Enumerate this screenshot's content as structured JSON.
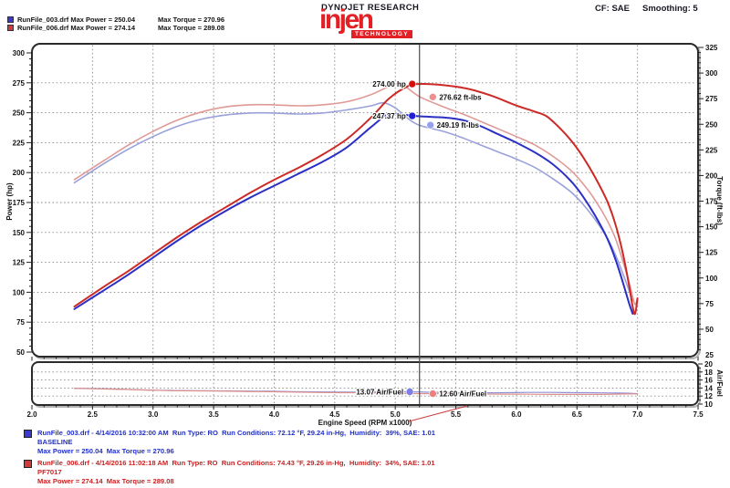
{
  "header": {
    "runs_summary": [
      {
        "file_power": "RunFile_003.drf Max Power = 250.04",
        "torque": "Max Torque = 270.96",
        "swatch_color": "#3a3ad0"
      },
      {
        "file_power": "RunFile_006.drf Max Power = 274.14",
        "torque": "Max Torque = 289.08",
        "swatch_color": "#d03a3a"
      }
    ],
    "brand": "DYNOJET RESEARCH",
    "logo_word": "injen",
    "logo_sub": "TECHNOLOGY",
    "correction": "CF: SAE",
    "smoothing": "Smoothing: 5"
  },
  "chart_data": {
    "type": "line",
    "grid": "dotted",
    "x_axis": {
      "title": "Engine Speed (RPM x1000)",
      "min": 2.0,
      "max": 7.5,
      "major_tick": 0.5,
      "minor_tick": 0.1,
      "tick_labels": [
        "2.0",
        "2.5",
        "3.0",
        "3.5",
        "4.0",
        "4.5",
        "5.0",
        "5.5",
        "6.0",
        "6.5",
        "7.0",
        "7.5"
      ]
    },
    "power_axis": {
      "title": "Power (hp)",
      "min": 50,
      "max": 300,
      "ticks": [
        300,
        275,
        250,
        225,
        200,
        175,
        150,
        125,
        100,
        75,
        50
      ]
    },
    "torque_axis": {
      "title": "Torque (ft-lbs)",
      "min": 25,
      "max": 325,
      "ticks": [
        325,
        300,
        275,
        250,
        225,
        200,
        175,
        150,
        125,
        100,
        75,
        50,
        25
      ]
    },
    "af_axis": {
      "title": "Air/Fuel",
      "min": 10,
      "max": 20,
      "ticks": [
        20,
        18,
        16,
        14,
        12,
        10
      ]
    },
    "cursor_rpm": 5.2,
    "series": [
      {
        "name": "RunFile_006 Torque",
        "axis": "torque",
        "color": "#e09a96",
        "width": 1.6,
        "points": [
          [
            2.35,
            196
          ],
          [
            2.6,
            215
          ],
          [
            2.8,
            230
          ],
          [
            3.0,
            243
          ],
          [
            3.2,
            254
          ],
          [
            3.4,
            262
          ],
          [
            3.6,
            267
          ],
          [
            3.8,
            269
          ],
          [
            4.0,
            269
          ],
          [
            4.2,
            268
          ],
          [
            4.4,
            269
          ],
          [
            4.6,
            272
          ],
          [
            4.8,
            279
          ],
          [
            4.95,
            287
          ],
          [
            5.05,
            289
          ],
          [
            5.2,
            277
          ],
          [
            5.4,
            267
          ],
          [
            5.6,
            258
          ],
          [
            5.8,
            248
          ],
          [
            6.0,
            238
          ],
          [
            6.15,
            230
          ],
          [
            6.3,
            219
          ],
          [
            6.45,
            205
          ],
          [
            6.55,
            192
          ],
          [
            6.65,
            176
          ],
          [
            6.75,
            156
          ],
          [
            6.82,
            138
          ],
          [
            6.88,
            116
          ],
          [
            6.93,
            96
          ],
          [
            6.96,
            82
          ],
          [
            6.98,
            74
          ],
          [
            7.0,
            80
          ]
        ]
      },
      {
        "name": "RunFile_003 Torque",
        "axis": "torque",
        "color": "#9aa0da",
        "width": 1.6,
        "points": [
          [
            2.35,
            193
          ],
          [
            2.6,
            212
          ],
          [
            2.8,
            226
          ],
          [
            3.0,
            238
          ],
          [
            3.2,
            248
          ],
          [
            3.4,
            255
          ],
          [
            3.6,
            259
          ],
          [
            3.8,
            261
          ],
          [
            4.0,
            261
          ],
          [
            4.2,
            260
          ],
          [
            4.4,
            261
          ],
          [
            4.6,
            264
          ],
          [
            4.8,
            268
          ],
          [
            4.9,
            271
          ],
          [
            5.0,
            266
          ],
          [
            5.1,
            256
          ],
          [
            5.2,
            249
          ],
          [
            5.4,
            243
          ],
          [
            5.55,
            237
          ],
          [
            5.7,
            230
          ],
          [
            5.85,
            223
          ],
          [
            6.0,
            216
          ],
          [
            6.15,
            208
          ],
          [
            6.3,
            197
          ],
          [
            6.45,
            184
          ],
          [
            6.55,
            172
          ],
          [
            6.65,
            157
          ],
          [
            6.75,
            139
          ],
          [
            6.82,
            122
          ],
          [
            6.88,
            104
          ],
          [
            6.93,
            88
          ],
          [
            6.96,
            78
          ]
        ]
      },
      {
        "name": "RunFile_003 Power",
        "axis": "power",
        "color": "#2b2fc4",
        "width": 2,
        "points": [
          [
            2.35,
            86
          ],
          [
            2.6,
            102
          ],
          [
            2.8,
            115
          ],
          [
            3.0,
            129
          ],
          [
            3.2,
            143
          ],
          [
            3.4,
            156
          ],
          [
            3.6,
            168
          ],
          [
            3.8,
            179
          ],
          [
            4.0,
            189
          ],
          [
            4.2,
            199
          ],
          [
            4.4,
            209
          ],
          [
            4.6,
            221
          ],
          [
            4.8,
            238
          ],
          [
            4.95,
            249
          ],
          [
            5.1,
            248
          ],
          [
            5.2,
            247
          ],
          [
            5.4,
            246
          ],
          [
            5.55,
            244
          ],
          [
            5.7,
            239
          ],
          [
            5.85,
            232
          ],
          [
            6.0,
            225
          ],
          [
            6.15,
            217
          ],
          [
            6.3,
            207
          ],
          [
            6.45,
            193
          ],
          [
            6.55,
            180
          ],
          [
            6.65,
            164
          ],
          [
            6.75,
            145
          ],
          [
            6.82,
            127
          ],
          [
            6.88,
            108
          ],
          [
            6.93,
            91
          ],
          [
            6.96,
            82
          ]
        ]
      },
      {
        "name": "RunFile_006 Power",
        "axis": "power",
        "color": "#cc2a26",
        "width": 2,
        "points": [
          [
            2.35,
            88
          ],
          [
            2.6,
            105
          ],
          [
            2.8,
            118
          ],
          [
            3.0,
            132
          ],
          [
            3.2,
            146
          ],
          [
            3.4,
            159
          ],
          [
            3.6,
            171
          ],
          [
            3.8,
            183
          ],
          [
            4.0,
            194
          ],
          [
            4.2,
            204
          ],
          [
            4.4,
            215
          ],
          [
            4.6,
            228
          ],
          [
            4.8,
            246
          ],
          [
            4.95,
            262
          ],
          [
            5.1,
            272
          ],
          [
            5.2,
            274
          ],
          [
            5.4,
            273
          ],
          [
            5.6,
            270
          ],
          [
            5.8,
            264
          ],
          [
            6.0,
            256
          ],
          [
            6.15,
            251
          ],
          [
            6.25,
            247
          ],
          [
            6.35,
            238
          ],
          [
            6.45,
            227
          ],
          [
            6.55,
            213
          ],
          [
            6.65,
            196
          ],
          [
            6.75,
            176
          ],
          [
            6.82,
            156
          ],
          [
            6.88,
            132
          ],
          [
            6.93,
            106
          ],
          [
            6.96,
            88
          ],
          [
            6.98,
            82
          ],
          [
            7.0,
            95
          ]
        ]
      },
      {
        "name": "RunFile_003 AirFuel",
        "axis": "af",
        "color": "#8d92d6",
        "width": 1.2,
        "points": [
          [
            2.35,
            13.9
          ],
          [
            2.55,
            13.85
          ],
          [
            2.75,
            13.7
          ],
          [
            2.95,
            13.5
          ],
          [
            3.15,
            13.4
          ],
          [
            3.35,
            13.35
          ],
          [
            3.55,
            13.3
          ],
          [
            3.75,
            13.25
          ],
          [
            3.95,
            13.2
          ],
          [
            4.15,
            13.1
          ],
          [
            4.35,
            13.05
          ],
          [
            4.55,
            13.0
          ],
          [
            4.75,
            13.0
          ],
          [
            4.95,
            13.05
          ],
          [
            5.12,
            13.07
          ],
          [
            5.3,
            12.95
          ],
          [
            5.5,
            12.85
          ],
          [
            5.7,
            12.8
          ],
          [
            5.9,
            12.85
          ],
          [
            6.1,
            12.9
          ],
          [
            6.3,
            12.9
          ],
          [
            6.5,
            12.85
          ],
          [
            6.7,
            12.8
          ],
          [
            6.85,
            12.75
          ],
          [
            7.0,
            12.6
          ]
        ]
      },
      {
        "name": "RunFile_006 AirFuel",
        "axis": "af",
        "color": "#e08f8b",
        "width": 1.2,
        "points": [
          [
            2.35,
            13.95
          ],
          [
            2.55,
            13.8
          ],
          [
            2.75,
            13.65
          ],
          [
            2.95,
            13.5
          ],
          [
            3.15,
            13.35
          ],
          [
            3.35,
            13.3
          ],
          [
            3.55,
            13.25
          ],
          [
            3.75,
            13.15
          ],
          [
            3.95,
            13.1
          ],
          [
            4.15,
            13.0
          ],
          [
            4.35,
            12.9
          ],
          [
            4.55,
            12.85
          ],
          [
            4.75,
            12.8
          ],
          [
            4.95,
            12.7
          ],
          [
            5.12,
            12.62
          ],
          [
            5.3,
            12.6
          ],
          [
            5.5,
            12.55
          ],
          [
            5.7,
            12.5
          ],
          [
            5.9,
            12.48
          ],
          [
            6.1,
            12.45
          ],
          [
            6.3,
            12.42
          ],
          [
            6.5,
            12.4
          ],
          [
            6.7,
            12.42
          ],
          [
            6.85,
            12.5
          ],
          [
            7.0,
            12.55
          ]
        ]
      }
    ],
    "annotations": [
      {
        "label": "274.00 hp",
        "axis": "power",
        "rpm": 5.14,
        "value": 274.0,
        "dot_color": "#d40f0f",
        "side": "left"
      },
      {
        "label": "276.62 ft-lbs",
        "axis": "torque",
        "rpm": 5.31,
        "value": 276.62,
        "dot_color": "#ef8f8f",
        "side": "right"
      },
      {
        "label": "247.37 hp",
        "axis": "power",
        "rpm": 5.14,
        "value": 247.37,
        "dot_color": "#1f1fd4",
        "side": "left"
      },
      {
        "label": "249.19 ft-lbs",
        "axis": "torque",
        "rpm": 5.29,
        "value": 249.19,
        "dot_color": "#97a0ef",
        "side": "right"
      },
      {
        "label": "13.07 Air/Fuel",
        "axis": "af",
        "rpm": 5.12,
        "value": 13.07,
        "dot_color": "#7d7de8",
        "side": "left"
      },
      {
        "label": "12.60 Air/Fuel",
        "axis": "af",
        "rpm": 5.31,
        "value": 12.6,
        "dot_color": "#ec8080",
        "side": "right"
      }
    ]
  },
  "footer": {
    "runs": [
      {
        "swatch_color": "#3a3ad0",
        "text_color": "#2230c8",
        "line1": "RunFile_003.drf - 4/14/2016 10:32:00 AM  Run Type: RO  Run Conditions: 72.12 °F, 29.24 in-Hg,  Humidity:  39%, SAE: 1.01",
        "line2": "BASELINE",
        "line3": "Max Power = 250.04  Max Torque = 270.96"
      },
      {
        "swatch_color": "#d03a3a",
        "text_color": "#c82222",
        "line1": "RunFile_006.drf - 4/14/2016 11:02:18 AM  Run Type: RO  Run Conditions: 74.43 °F, 29.26 in-Hg,  Humidity:  34%, SAE: 1.01",
        "line2": "PF7017",
        "line3": "Max Power = 274.14  Max Torque = 289.08"
      }
    ]
  }
}
